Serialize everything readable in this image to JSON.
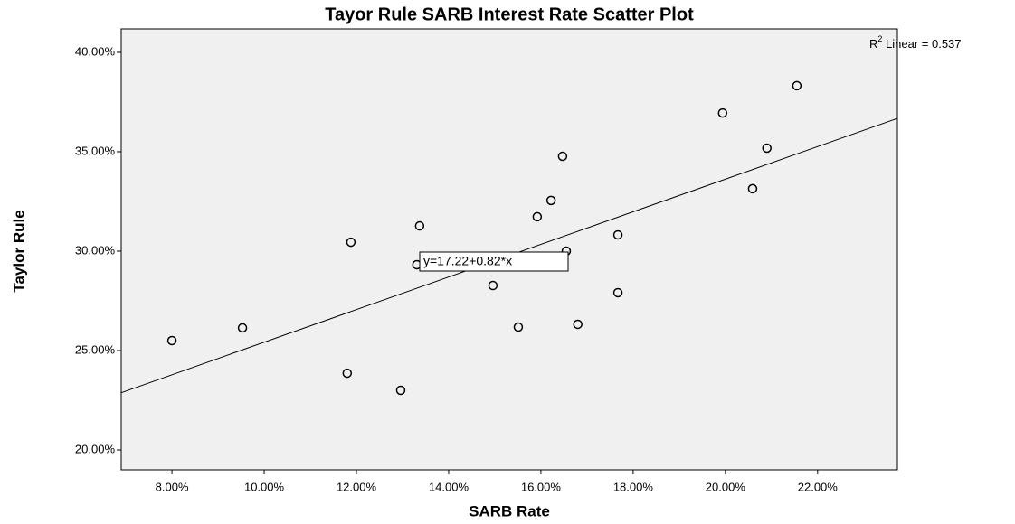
{
  "chart_data": {
    "type": "scatter",
    "title": "Tayor Rule SARB Interest Rate Scatter Plot",
    "x_label": "SARB Rate",
    "y_label": "Taylor Rule",
    "x": [
      8.0,
      9.53,
      11.8,
      11.88,
      12.96,
      13.37,
      13.31,
      14.96,
      15.51,
      15.92,
      16.22,
      16.47,
      16.55,
      16.8,
      17.67,
      17.67,
      19.94,
      20.59,
      20.9,
      21.55
    ],
    "values": [
      25.5,
      26.14,
      23.86,
      30.45,
      23.0,
      31.27,
      29.32,
      28.27,
      26.18,
      31.73,
      32.55,
      34.77,
      30.0,
      26.32,
      30.82,
      27.91,
      36.95,
      33.14,
      35.18,
      38.32
    ],
    "color": "#000000",
    "xlim": [
      6.9,
      23.73
    ],
    "ylim": [
      19.0,
      41.18
    ],
    "xticks": [
      {
        "value": 8,
        "label": "8.00%"
      },
      {
        "value": 10,
        "label": "10.00%"
      },
      {
        "value": 12,
        "label": "12.00%"
      },
      {
        "value": 14,
        "label": "14.00%"
      },
      {
        "value": 16,
        "label": "16.00%"
      },
      {
        "value": 18,
        "label": "18.00%"
      },
      {
        "value": 20,
        "label": "20.00%"
      },
      {
        "value": 22,
        "label": "22.00%"
      }
    ],
    "yticks": [
      {
        "value": 20,
        "label": "20.00%"
      },
      {
        "value": 25,
        "label": "25.00%"
      },
      {
        "value": 30,
        "label": "30.00%"
      },
      {
        "value": 35,
        "label": "35.00%"
      },
      {
        "value": 40,
        "label": "40.00%"
      }
    ],
    "fit": {
      "intercept": 17.22,
      "slope": 0.82,
      "label": "y=17.22+0.82*x"
    },
    "r_squared_label": [
      "R",
      "2",
      " Linear = 0.537"
    ]
  }
}
